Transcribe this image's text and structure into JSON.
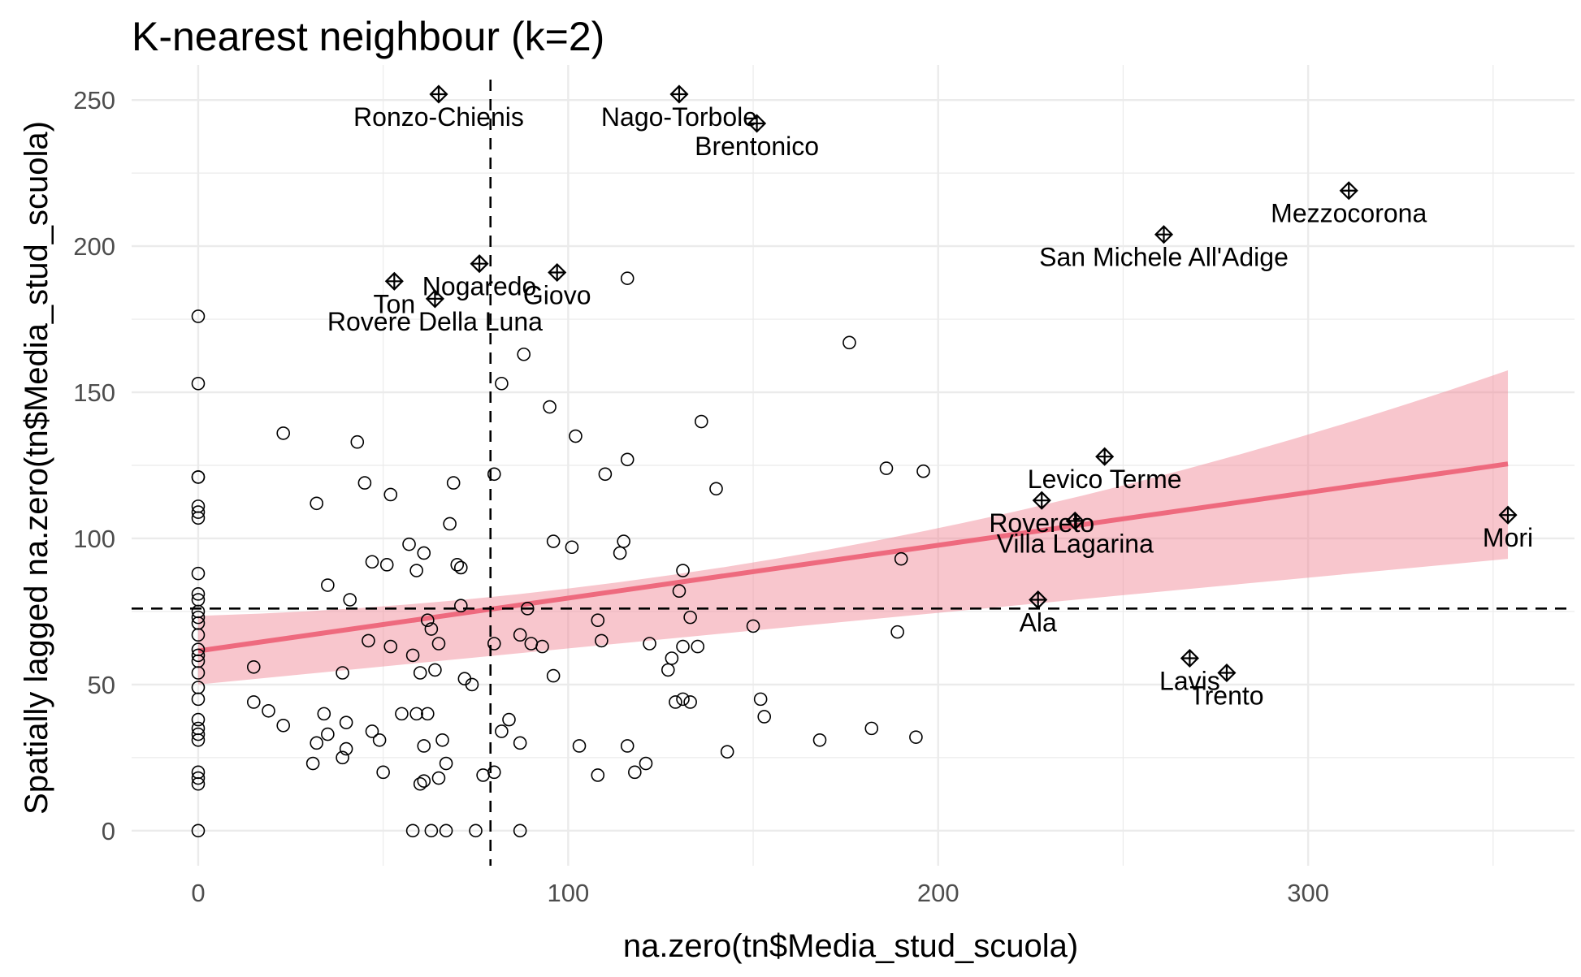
{
  "chart_data": {
    "type": "scatter",
    "title": "K-nearest neighbour (k=2)",
    "xlabel": "na.zero(tn$Media_stud_scuola)",
    "ylabel": "Spatially lagged na.zero(tn$Media_stud_scuola)",
    "xlim": [
      -18,
      372
    ],
    "ylim": [
      -12,
      262
    ],
    "x_ticks": [
      0,
      100,
      200,
      300
    ],
    "y_ticks": [
      0,
      50,
      100,
      150,
      200,
      250
    ],
    "grid": true,
    "mean_x": 79,
    "mean_y": 76,
    "fit": {
      "x0": 0,
      "x1": 354,
      "y0": 61.5,
      "y1": 125.5,
      "ci0": [
        50,
        73.5
      ],
      "ci_mid": [
        72,
        80
      ],
      "ci1": [
        93,
        157.5
      ]
    },
    "points": [
      [
        0,
        176
      ],
      [
        0,
        153
      ],
      [
        0,
        121
      ],
      [
        0,
        121
      ],
      [
        0,
        111
      ],
      [
        0,
        109
      ],
      [
        0,
        107
      ],
      [
        0,
        88
      ],
      [
        0,
        81
      ],
      [
        0,
        79
      ],
      [
        0,
        75
      ],
      [
        0,
        73
      ],
      [
        0,
        71
      ],
      [
        0,
        67
      ],
      [
        0,
        62
      ],
      [
        0,
        60
      ],
      [
        0,
        58
      ],
      [
        0,
        54
      ],
      [
        0,
        49
      ],
      [
        0,
        45
      ],
      [
        0,
        38
      ],
      [
        0,
        35
      ],
      [
        0,
        33
      ],
      [
        0,
        31
      ],
      [
        0,
        20
      ],
      [
        0,
        18
      ],
      [
        0,
        16
      ],
      [
        0,
        0
      ],
      [
        15,
        56
      ],
      [
        15,
        44
      ],
      [
        19,
        41
      ],
      [
        23,
        36
      ],
      [
        23,
        136
      ],
      [
        31,
        23
      ],
      [
        32,
        112
      ],
      [
        32,
        30
      ],
      [
        34,
        40
      ],
      [
        35,
        84
      ],
      [
        35,
        33
      ],
      [
        39,
        25
      ],
      [
        39,
        54
      ],
      [
        40,
        37
      ],
      [
        40,
        28
      ],
      [
        41,
        79
      ],
      [
        43,
        133
      ],
      [
        45,
        119
      ],
      [
        46,
        65
      ],
      [
        47,
        92
      ],
      [
        47,
        34
      ],
      [
        49,
        31
      ],
      [
        50,
        20
      ],
      [
        51,
        91
      ],
      [
        52,
        63
      ],
      [
        52,
        115
      ],
      [
        55,
        40
      ],
      [
        57,
        98
      ],
      [
        58,
        60
      ],
      [
        58,
        0
      ],
      [
        59,
        89
      ],
      [
        59,
        40
      ],
      [
        60,
        16
      ],
      [
        60,
        54
      ],
      [
        61,
        17
      ],
      [
        61,
        95
      ],
      [
        61,
        29
      ],
      [
        62,
        40
      ],
      [
        62,
        72
      ],
      [
        63,
        0
      ],
      [
        63,
        69
      ],
      [
        64,
        55
      ],
      [
        65,
        18
      ],
      [
        65,
        64
      ],
      [
        66,
        31
      ],
      [
        67,
        23
      ],
      [
        67,
        0
      ],
      [
        68,
        105
      ],
      [
        69,
        119
      ],
      [
        70,
        91
      ],
      [
        71,
        77
      ],
      [
        71,
        90
      ],
      [
        72,
        52
      ],
      [
        74,
        50
      ],
      [
        75,
        0
      ],
      [
        77,
        19
      ],
      [
        80,
        20
      ],
      [
        80,
        64
      ],
      [
        80,
        122
      ],
      [
        82,
        34
      ],
      [
        82,
        153
      ],
      [
        84,
        38
      ],
      [
        87,
        0
      ],
      [
        87,
        30
      ],
      [
        87,
        67
      ],
      [
        88,
        163
      ],
      [
        89,
        76
      ],
      [
        90,
        64
      ],
      [
        93,
        63
      ],
      [
        95,
        145
      ],
      [
        96,
        53
      ],
      [
        96,
        99
      ],
      [
        101,
        97
      ],
      [
        102,
        135
      ],
      [
        103,
        29
      ],
      [
        108,
        72
      ],
      [
        108,
        19
      ],
      [
        109,
        65
      ],
      [
        110,
        122
      ],
      [
        114,
        95
      ],
      [
        115,
        99
      ],
      [
        116,
        29
      ],
      [
        116,
        189
      ],
      [
        116,
        127
      ],
      [
        118,
        20
      ],
      [
        121,
        23
      ],
      [
        122,
        64
      ],
      [
        127,
        55
      ],
      [
        128,
        59
      ],
      [
        129,
        44
      ],
      [
        130,
        82
      ],
      [
        131,
        89
      ],
      [
        131,
        45
      ],
      [
        131,
        63
      ],
      [
        133,
        73
      ],
      [
        133,
        44
      ],
      [
        135,
        63
      ],
      [
        136,
        140
      ],
      [
        140,
        117
      ],
      [
        143,
        27
      ],
      [
        150,
        70
      ],
      [
        152,
        45
      ],
      [
        153,
        39
      ],
      [
        168,
        31
      ],
      [
        176,
        167
      ],
      [
        182,
        35
      ],
      [
        186,
        124
      ],
      [
        189,
        68
      ],
      [
        190,
        93
      ],
      [
        194,
        32
      ],
      [
        196,
        123
      ]
    ],
    "influential": [
      {
        "label": "Ronzo-Chienis",
        "x": 65,
        "y": 252
      },
      {
        "label": "Nago-Torbole",
        "x": 130,
        "y": 252
      },
      {
        "label": "Brentonico",
        "x": 151,
        "y": 242
      },
      {
        "label": "Mezzocorona",
        "x": 311,
        "y": 219
      },
      {
        "label": "San Michele All'Adige",
        "x": 261,
        "y": 204
      },
      {
        "label": "Nogaredo",
        "x": 76,
        "y": 194
      },
      {
        "label": "Giovo",
        "x": 97,
        "y": 191
      },
      {
        "label": "Ton",
        "x": 53,
        "y": 188
      },
      {
        "label": "Rovere Della Luna",
        "x": 64,
        "y": 182
      },
      {
        "label": "Levico Terme",
        "x": 245,
        "y": 128
      },
      {
        "label": "Rovereto",
        "x": 228,
        "y": 113
      },
      {
        "label": "Villa Lagarina",
        "x": 237,
        "y": 106
      },
      {
        "label": "Mori",
        "x": 354,
        "y": 108
      },
      {
        "label": "Ala",
        "x": 227,
        "y": 79
      },
      {
        "label": "Lavis",
        "x": 268,
        "y": 59
      },
      {
        "label": "Trento",
        "x": 278,
        "y": 54
      }
    ]
  }
}
